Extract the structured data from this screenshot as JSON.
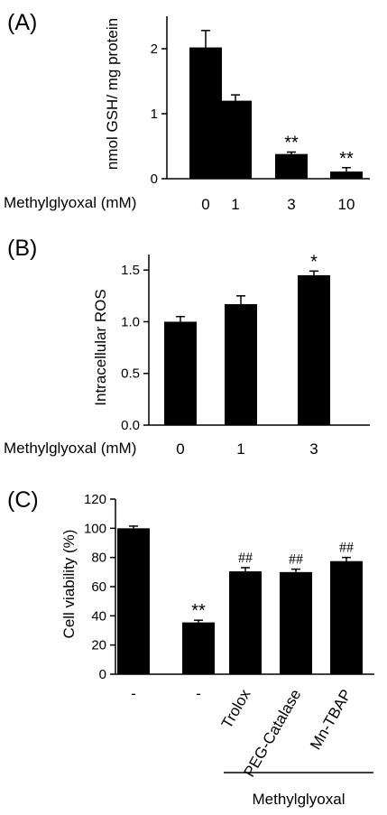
{
  "chart_data": [
    {
      "type": "bar",
      "panel_label": "(A)",
      "ylabel": "nmol GSH/ mg protein",
      "xlabel": "Methylglyoxal (mM)",
      "categories": [
        "0",
        "1",
        "3",
        "10"
      ],
      "values": [
        2.02,
        1.2,
        0.38,
        0.11
      ],
      "errors": [
        0.26,
        0.09,
        0.03,
        0.06
      ],
      "annotations": [
        "",
        "",
        "**",
        "**"
      ],
      "ylim": [
        0,
        2.5
      ],
      "yticks": [
        "0",
        "1",
        "2"
      ],
      "ytick_values": [
        0,
        1,
        2
      ],
      "grid": false
    },
    {
      "type": "bar",
      "panel_label": "(B)",
      "ylabel": "Intracellular ROS",
      "xlabel": "Methylglyoxal (mM)",
      "categories": [
        "0",
        "1",
        "3"
      ],
      "values": [
        1.0,
        1.17,
        1.45
      ],
      "errors": [
        0.05,
        0.08,
        0.04
      ],
      "annotations": [
        "",
        "",
        "*"
      ],
      "ylim": [
        0,
        1.65
      ],
      "yticks": [
        "0.0",
        "0.5",
        "1.0",
        "1.5"
      ],
      "ytick_values": [
        0,
        0.5,
        1.0,
        1.5
      ],
      "grid": false
    },
    {
      "type": "bar",
      "panel_label": "(C)",
      "ylabel": "Cell viability (%)",
      "group_label": "Methylglyoxal",
      "categories": [
        "-",
        "-",
        "Trolox",
        "PEG-Catalase",
        "Mn-TBAP"
      ],
      "values": [
        100,
        35.5,
        70.5,
        70,
        77.5
      ],
      "errors": [
        1.5,
        1.5,
        2.5,
        2.0,
        2.5
      ],
      "annotations": [
        "",
        "**",
        "##",
        "##",
        "##"
      ],
      "ylim": [
        0,
        120
      ],
      "yticks": [
        "0",
        "20",
        "40",
        "60",
        "80",
        "100",
        "120"
      ],
      "ytick_values": [
        0,
        20,
        40,
        60,
        80,
        100,
        120
      ],
      "grid": false
    }
  ]
}
